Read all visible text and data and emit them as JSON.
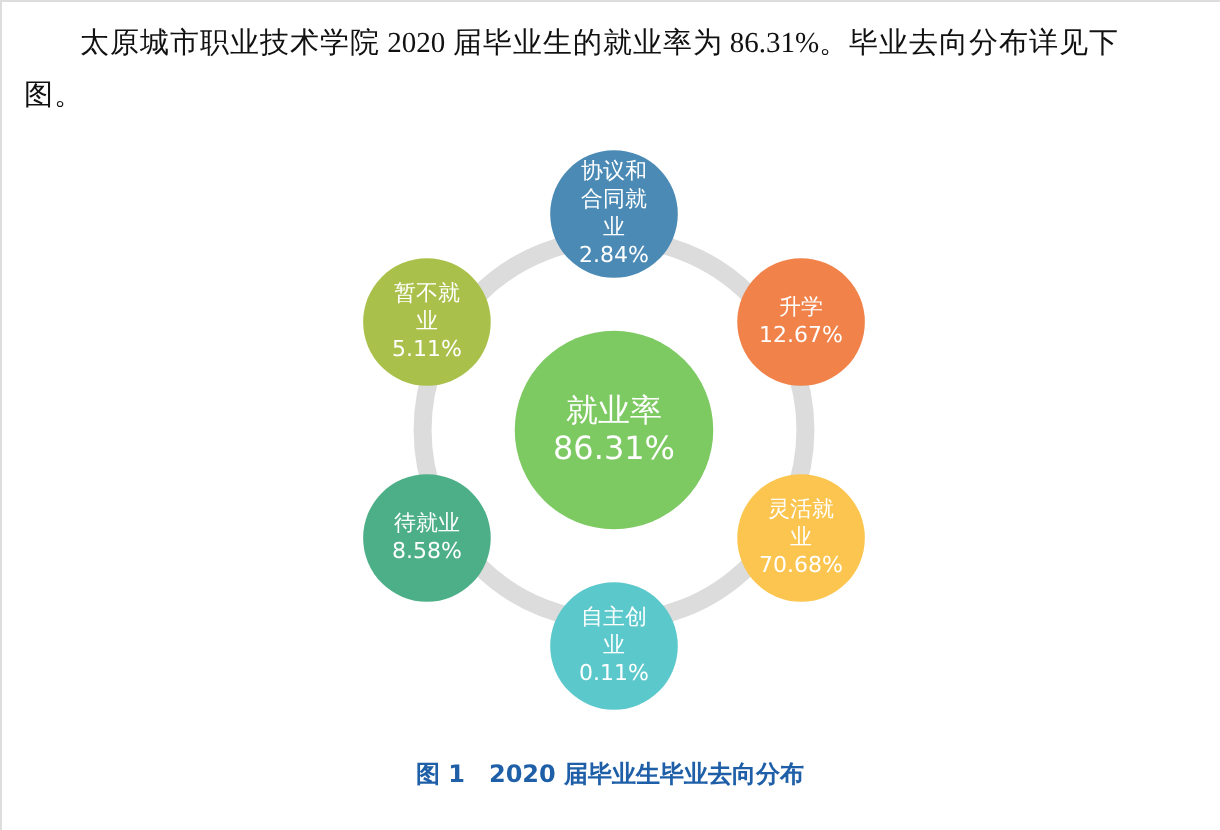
{
  "chart_data": {
    "type": "other",
    "title": "图 1　2020 届毕业生毕业去向分布",
    "annotations": [
      "太原城市职业技术学院 2020 届毕业生的就业率为 86.31%。毕业去向分布详见下图。"
    ],
    "categories": [
      "就业率",
      "协议和合同就业",
      "升学",
      "灵活就业",
      "自主创业",
      "待就业",
      "暂不就业"
    ],
    "values": [
      86.31,
      2.84,
      12.67,
      70.68,
      0.11,
      8.58,
      5.11
    ],
    "value_labels": [
      "86.31%",
      "2.84%",
      "12.67%",
      "70.68%",
      "0.11%",
      "8.58%",
      "5.11%"
    ],
    "colors": [
      "#7dc962",
      "#4a8ab5",
      "#f0824a",
      "#fbc54f",
      "#5bc8cc",
      "#4caf88",
      "#a9c14a"
    ]
  }
}
